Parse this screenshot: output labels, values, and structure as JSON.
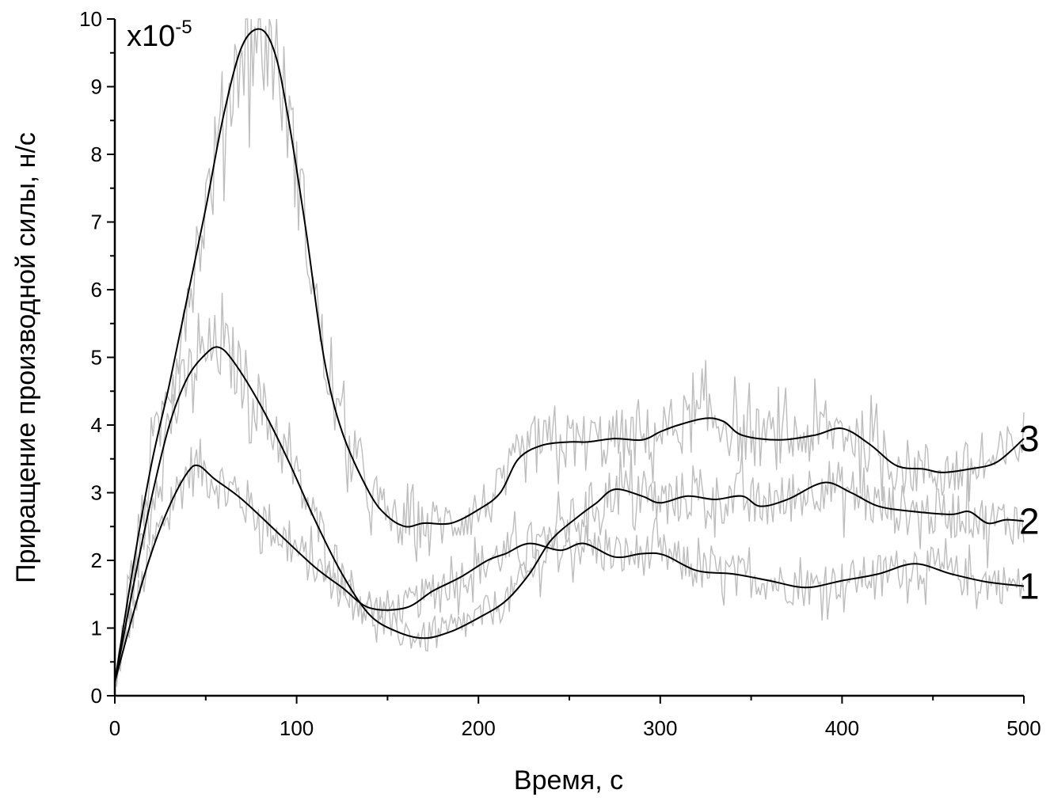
{
  "chart_data": {
    "type": "line",
    "title": "",
    "xlabel": "Время, с",
    "ylabel": "Приращение производной силы, н/с",
    "scale_label": {
      "base": "x10",
      "exponent": "-5"
    },
    "xlim": [
      0,
      500
    ],
    "ylim": [
      0,
      10
    ],
    "x_ticks": [
      "0",
      "100",
      "200",
      "300",
      "400",
      "500"
    ],
    "y_ticks": [
      "0",
      "1",
      "2",
      "3",
      "4",
      "5",
      "6",
      "7",
      "8",
      "9",
      "10"
    ],
    "grid": false,
    "raw_color": "#bdbdbd",
    "smooth_color": "#000000",
    "series": [
      {
        "name": "1",
        "x": [
          0,
          10,
          20,
          30,
          40,
          46,
          55,
          70,
          90,
          110,
          125,
          140,
          160,
          175,
          190,
          205,
          215,
          228,
          245,
          258,
          275,
          290,
          302,
          320,
          340,
          360,
          380,
          400,
          420,
          440,
          460,
          480,
          500
        ],
        "y": [
          0.2,
          1.2,
          2.1,
          2.8,
          3.3,
          3.4,
          3.2,
          2.9,
          2.4,
          1.9,
          1.6,
          1.3,
          1.3,
          1.55,
          1.75,
          2.0,
          2.1,
          2.25,
          2.15,
          2.25,
          2.05,
          2.1,
          2.08,
          1.85,
          1.8,
          1.7,
          1.6,
          1.7,
          1.8,
          1.95,
          1.8,
          1.68,
          1.62
        ]
      },
      {
        "name": "2",
        "x": [
          0,
          10,
          20,
          30,
          40,
          50,
          57,
          65,
          80,
          95,
          110,
          125,
          140,
          155,
          170,
          185,
          200,
          215,
          228,
          240,
          255,
          265,
          275,
          290,
          300,
          315,
          330,
          345,
          355,
          370,
          390,
          405,
          420,
          440,
          460,
          470,
          480,
          490,
          500
        ],
        "y": [
          0.2,
          1.6,
          2.9,
          4.0,
          4.7,
          5.05,
          5.15,
          4.95,
          4.3,
          3.5,
          2.6,
          1.8,
          1.2,
          0.95,
          0.85,
          0.95,
          1.15,
          1.4,
          1.8,
          2.3,
          2.65,
          2.85,
          3.05,
          2.95,
          2.85,
          2.95,
          2.9,
          2.95,
          2.8,
          2.9,
          3.15,
          3.0,
          2.8,
          2.72,
          2.68,
          2.72,
          2.55,
          2.6,
          2.58
        ]
      },
      {
        "name": "3",
        "x": [
          0,
          10,
          20,
          30,
          40,
          50,
          60,
          70,
          80,
          88,
          95,
          105,
          115,
          125,
          140,
          150,
          160,
          170,
          185,
          200,
          212,
          222,
          235,
          250,
          260,
          275,
          290,
          300,
          310,
          325,
          335,
          345,
          365,
          385,
          400,
          415,
          430,
          445,
          455,
          470,
          485,
          500
        ],
        "y": [
          0.2,
          1.9,
          3.4,
          4.6,
          5.9,
          7.2,
          8.6,
          9.6,
          9.85,
          9.5,
          8.6,
          6.9,
          5.0,
          3.9,
          3.0,
          2.65,
          2.5,
          2.55,
          2.55,
          2.75,
          3.0,
          3.5,
          3.7,
          3.75,
          3.75,
          3.8,
          3.78,
          3.9,
          4.0,
          4.1,
          4.05,
          3.85,
          3.78,
          3.85,
          3.95,
          3.72,
          3.4,
          3.35,
          3.3,
          3.35,
          3.45,
          3.8
        ]
      }
    ]
  }
}
